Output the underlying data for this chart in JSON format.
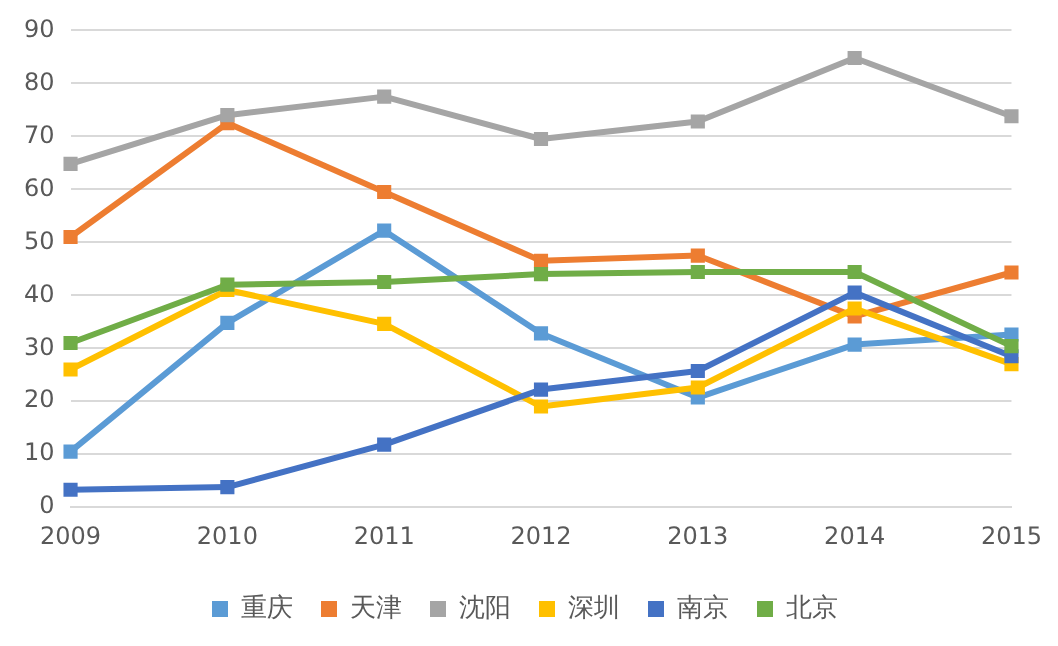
{
  "chart_data": {
    "type": "line",
    "categories": [
      "2009",
      "2010",
      "2011",
      "2012",
      "2013",
      "2014",
      "2015"
    ],
    "series": [
      {
        "name": "重庆",
        "color": "#5b9bd5",
        "values": [
          10.5,
          34.8,
          52.2,
          32.8,
          20.7,
          30.7,
          32.6
        ]
      },
      {
        "name": "天津",
        "color": "#ed7d31",
        "values": [
          51,
          72.5,
          59.5,
          46.5,
          47.5,
          36,
          44.3
        ]
      },
      {
        "name": "沈阳",
        "color": "#a5a5a5",
        "values": [
          64.8,
          74,
          77.5,
          69.5,
          72.8,
          84.8,
          73.8
        ]
      },
      {
        "name": "深圳",
        "color": "#ffc000",
        "values": [
          26,
          41,
          34.6,
          19,
          22.6,
          37.5,
          27
        ]
      },
      {
        "name": "南京",
        "color": "#4472c4",
        "values": [
          3.3,
          3.8,
          11.8,
          22.2,
          25.7,
          40.5,
          28.5
        ]
      },
      {
        "name": "北京",
        "color": "#70ad47",
        "values": [
          31,
          42,
          42.5,
          44,
          44.4,
          44.4,
          30.4
        ]
      }
    ],
    "ylim": [
      0,
      90
    ],
    "yticks": [
      0,
      10,
      20,
      30,
      40,
      50,
      60,
      70,
      80,
      90
    ],
    "grid": "y",
    "legend": "bottom",
    "marker": "square",
    "line_style": "solid"
  }
}
